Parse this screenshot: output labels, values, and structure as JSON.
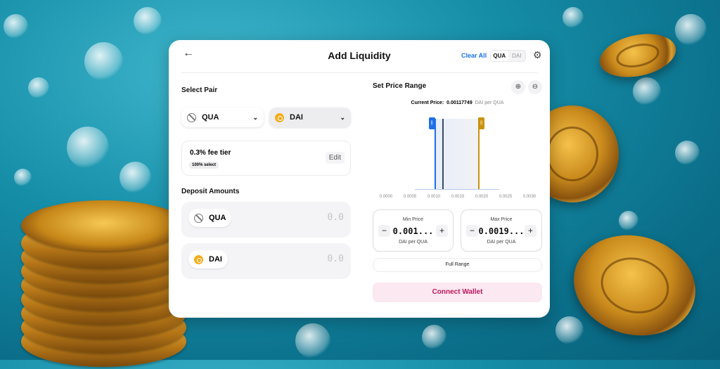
{
  "header": {
    "title": "Add Liquidity",
    "clear_all": "Clear All",
    "toggle": [
      "QUA",
      "DAI"
    ]
  },
  "pair": {
    "heading": "Select Pair",
    "token_a": "QUA",
    "token_b": "DAI"
  },
  "fee": {
    "label": "0.3% fee tier",
    "badge": "100% select",
    "edit": "Edit"
  },
  "deposit": {
    "heading": "Deposit Amounts",
    "rows": [
      {
        "token": "QUA",
        "amount": "0.0"
      },
      {
        "token": "DAI",
        "amount": "0.0"
      }
    ]
  },
  "range": {
    "heading": "Set Price Range",
    "current_label": "Current Price:",
    "current_value": "0.00117749",
    "current_unit": "DAI per QUA",
    "ticks": [
      "0.0000",
      "0.0005",
      "0.0010",
      "0.0015",
      "0.0020",
      "0.0025",
      "0.0030"
    ],
    "min_price_value": 0.00101,
    "current_price_value": 0.00117749,
    "max_price_value": 0.00193,
    "min": {
      "label": "Min Price",
      "value": "0.001...",
      "unit": "DAI per QUA"
    },
    "max": {
      "label": "Max Price",
      "value": "0.0019...",
      "unit": "DAI per QUA"
    },
    "full_range": "Full Range"
  },
  "connect": "Connect Wallet",
  "colors": {
    "min_handle": "#1e6ee8",
    "max_handle": "#c9920e",
    "connect_bg": "#fce8f0",
    "connect_text": "#c0185e",
    "link": "#1a73e8"
  }
}
